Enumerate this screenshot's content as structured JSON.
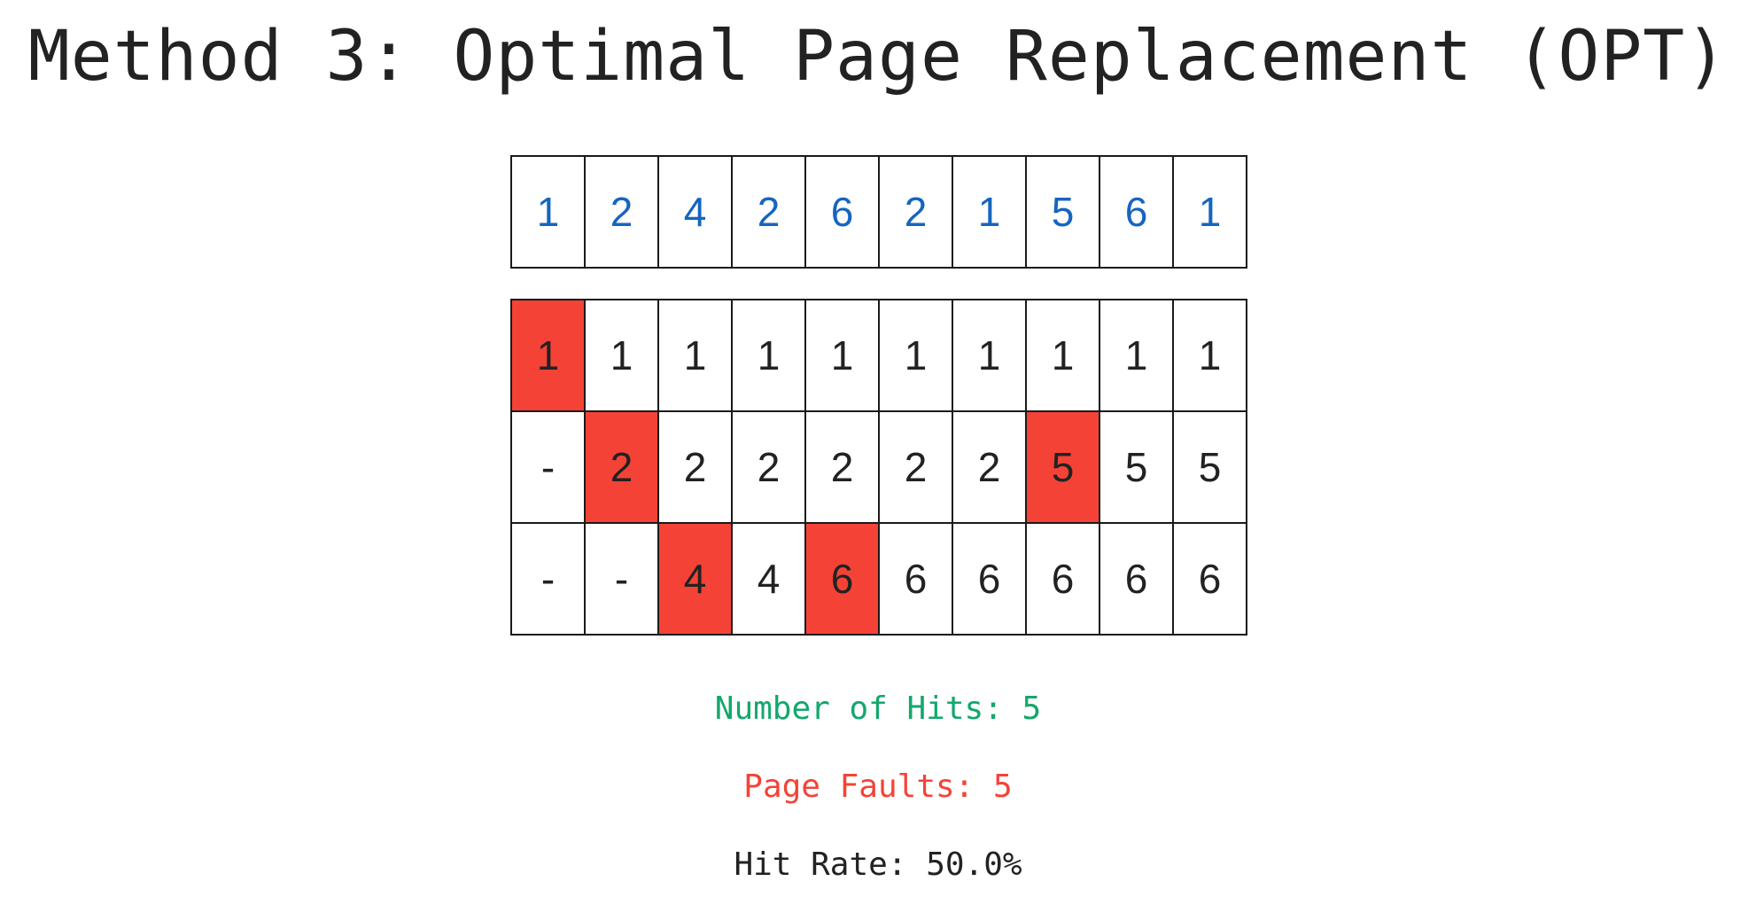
{
  "title": "Method 3: Optimal Page Replacement (OPT)",
  "reference_string": [
    "1",
    "2",
    "4",
    "2",
    "6",
    "2",
    "1",
    "5",
    "6",
    "1"
  ],
  "frames": [
    [
      "1",
      "1",
      "1",
      "1",
      "1",
      "1",
      "1",
      "1",
      "1",
      "1"
    ],
    [
      "-",
      "2",
      "2",
      "2",
      "2",
      "2",
      "2",
      "5",
      "5",
      "5"
    ],
    [
      "-",
      "-",
      "4",
      "4",
      "6",
      "6",
      "6",
      "6",
      "6",
      "6"
    ]
  ],
  "faults": [
    [
      true,
      false,
      false,
      false,
      false,
      false,
      false,
      false,
      false,
      false
    ],
    [
      false,
      true,
      false,
      false,
      false,
      false,
      false,
      true,
      false,
      false
    ],
    [
      false,
      false,
      true,
      false,
      true,
      false,
      false,
      false,
      false,
      false
    ]
  ],
  "stats": {
    "hits_label": "Number of Hits: ",
    "hits": "5",
    "faults_label": "Page Faults: ",
    "faults": "5",
    "hit_rate_label": "Hit Rate: ",
    "hit_rate": "50.0%"
  },
  "colors": {
    "reference_text": "#1565c0",
    "fault_fill": "#f44336",
    "hits_text": "#13a86b",
    "faults_text": "#f44336",
    "grid_border": "#1a1a1a"
  }
}
